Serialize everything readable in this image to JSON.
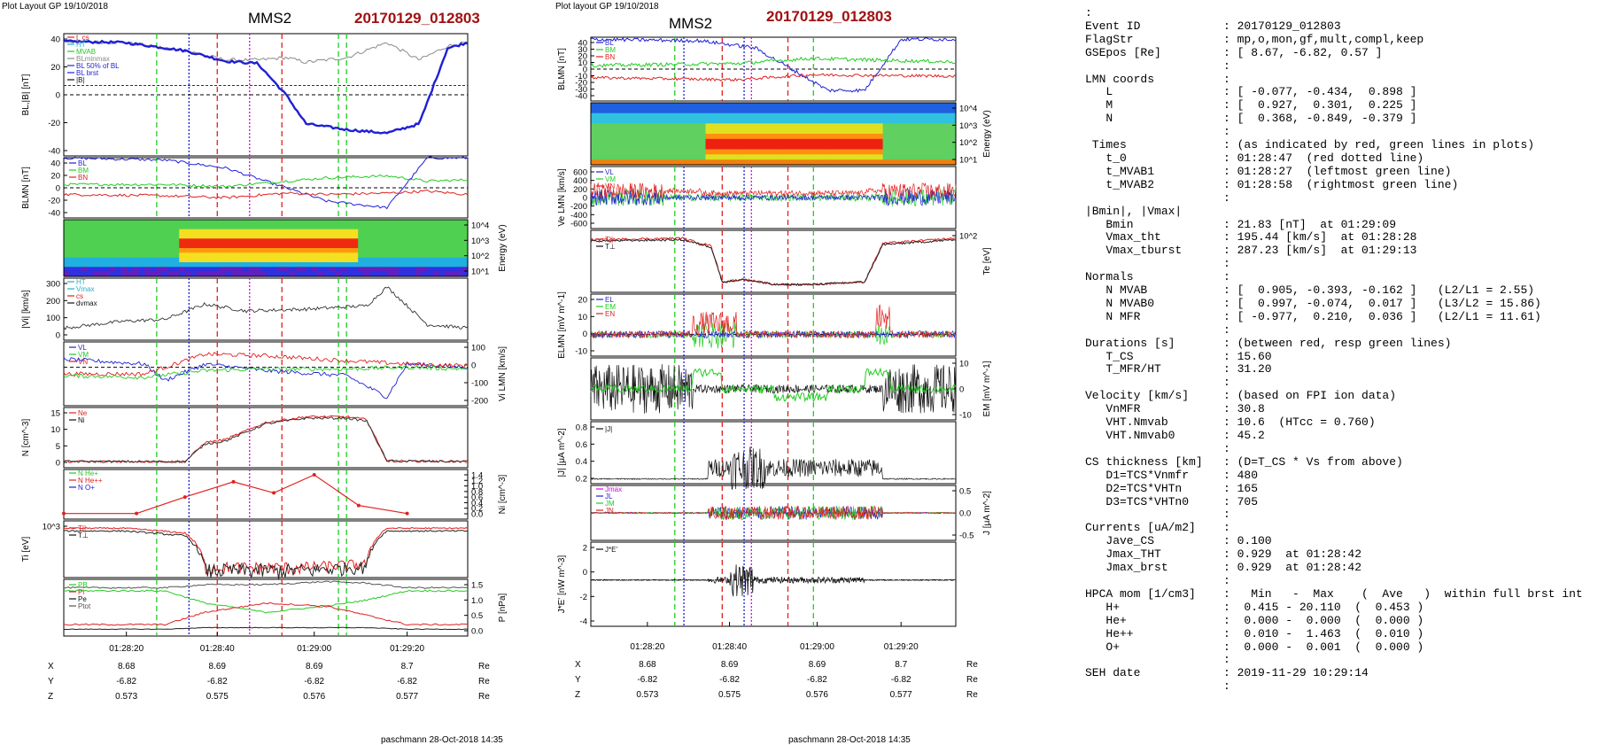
{
  "header_left": {
    "layout_label": "Plot Layout GP 19/10/2018",
    "spacecraft": "MMS2",
    "event": "20170129_012803",
    "footer": "paschmann 28-Oct-2018 14:35"
  },
  "header_mid": {
    "layout_label": "Plot layout GP 19/10/2018",
    "spacecraft": "MMS2",
    "event": "20170129_012803",
    "footer": "paschmann 28-Oct-2018 14:35"
  },
  "colors": {
    "blue": "#1f1fd6",
    "red": "#e02020",
    "green": "#22cc22",
    "magenta": "#e000e0",
    "black": "#111111",
    "gray": "#8a8a8a",
    "event_red": "#a01010",
    "cyan": "#20b0d0"
  },
  "time_axis": {
    "tick_labels": [
      "01:28:20",
      "01:28:40",
      "01:29:00",
      "01:29:20"
    ],
    "position_rows": [
      {
        "label": "X",
        "values": [
          "8.68",
          "8.69",
          "8.69",
          "8.7"
        ],
        "unit": "Re"
      },
      {
        "label": "Y",
        "values": [
          "-6.82",
          "-6.82",
          "-6.82",
          "-6.82"
        ],
        "unit": "Re"
      },
      {
        "label": "Z",
        "values": [
          "0.573",
          "0.575",
          "0.576",
          "0.577"
        ],
        "unit": "Re"
      }
    ]
  },
  "chart_data": [
    {
      "type": "line",
      "panel": "left-1",
      "ylabel": "BL,|B| [nT]",
      "yticks": [
        "40",
        "20",
        "0",
        "-20",
        "-40"
      ],
      "legend": [
        "t_cs",
        "HT",
        "MVAB",
        "BLminmax",
        "BL 50% of BL",
        "BL brst",
        "|B|"
      ],
      "series": [
        {
          "name": "BL brst",
          "x": [
            0,
            15,
            30,
            40,
            48,
            55,
            60,
            70,
            80,
            88,
            95,
            100
          ],
          "values": [
            46,
            45,
            38,
            29,
            27,
            0,
            -25,
            -30,
            -33,
            -25,
            40,
            45
          ]
        },
        {
          "name": "|B|",
          "x": [
            0,
            15,
            30,
            40,
            48,
            55,
            60,
            70,
            80,
            88,
            95,
            100
          ],
          "values": [
            46,
            45,
            38,
            30,
            30,
            32,
            28,
            32,
            45,
            30,
            42,
            45
          ]
        }
      ]
    },
    {
      "type": "line",
      "panel": "left-2",
      "ylabel": "BLMN [nT]",
      "yticks": [
        "40",
        "20",
        "0",
        "-20",
        "-40"
      ],
      "legend": [
        "BL",
        "BM",
        "BN"
      ],
      "series": [
        {
          "name": "BL",
          "x": [
            0,
            25,
            40,
            55,
            65,
            80,
            90,
            100
          ],
          "values": [
            45,
            42,
            30,
            0,
            -20,
            -30,
            45,
            45
          ]
        },
        {
          "name": "BM",
          "x": [
            0,
            25,
            40,
            55,
            65,
            80,
            90,
            100
          ],
          "values": [
            5,
            5,
            2,
            10,
            15,
            18,
            10,
            12
          ]
        },
        {
          "name": "BN",
          "x": [
            0,
            25,
            40,
            55,
            65,
            80,
            90,
            100
          ],
          "values": [
            -10,
            -12,
            -15,
            -8,
            -10,
            -8,
            -5,
            -10
          ]
        }
      ]
    },
    {
      "type": "heatmap",
      "panel": "left-3",
      "ylabel": "Energy (eV)",
      "yticks": [
        "10^4",
        "10^3",
        "10^2",
        "10^1"
      ]
    },
    {
      "type": "line",
      "panel": "left-4",
      "ylabel": "|Vi| [km/s]",
      "yticks": [
        "300",
        "200",
        "100",
        "0"
      ],
      "legend": [
        "HT",
        "Vmax",
        "cs",
        "dvmax"
      ],
      "series": [
        {
          "name": "|Vi|",
          "x": [
            0,
            15,
            25,
            35,
            45,
            60,
            75,
            80,
            90,
            100
          ],
          "values": [
            40,
            80,
            90,
            180,
            140,
            150,
            170,
            280,
            60,
            40
          ]
        }
      ]
    },
    {
      "type": "line",
      "panel": "left-5",
      "ylabel": "Vi LMN [km/s]",
      "yticks": [
        "100",
        "0",
        "-100",
        "-200"
      ],
      "legend": [
        "VL",
        "VM",
        "VN"
      ],
      "series": [
        {
          "name": "VL",
          "x": [
            0,
            20,
            25,
            35,
            50,
            70,
            80,
            85,
            100
          ],
          "values": [
            50,
            20,
            -80,
            20,
            -20,
            -50,
            -180,
            20,
            0
          ]
        },
        {
          "name": "VM",
          "x": [
            0,
            20,
            35,
            50,
            70,
            85,
            100
          ],
          "values": [
            -40,
            -40,
            80,
            70,
            40,
            20,
            10
          ]
        },
        {
          "name": "VN",
          "x": [
            0,
            20,
            35,
            50,
            70,
            85,
            100
          ],
          "values": [
            -50,
            -60,
            -20,
            -10,
            -10,
            0,
            -10
          ]
        }
      ]
    },
    {
      "type": "line",
      "panel": "left-6",
      "ylabel": "N [cm^-3]",
      "yticks": [
        "15",
        "10",
        "5",
        "0"
      ],
      "legend": [
        "Ne",
        "Ni"
      ],
      "series": [
        {
          "name": "Ne",
          "x": [
            0,
            30,
            35,
            40,
            50,
            60,
            70,
            75,
            80,
            100
          ],
          "values": [
            0.3,
            0.3,
            7,
            8,
            14,
            16,
            16,
            15,
            0.5,
            0.3
          ]
        },
        {
          "name": "Ni",
          "x": [
            0,
            30,
            35,
            40,
            50,
            60,
            70,
            75,
            80,
            100
          ],
          "values": [
            0.3,
            0.3,
            6.5,
            7.5,
            13.5,
            15.5,
            15.5,
            14.5,
            0.5,
            0.3
          ]
        }
      ]
    },
    {
      "type": "line",
      "panel": "left-7",
      "ylabel": "Ni [cm^-3]",
      "yticks": [
        "1.4",
        "1.2",
        "1.0",
        "0.8",
        "0.6",
        "0.4",
        "0.2",
        "0.0"
      ],
      "legend": [
        "N He+",
        "N He++",
        "N O+"
      ],
      "series": [
        {
          "name": "N He++",
          "x": [
            0,
            18,
            30,
            42,
            52,
            62,
            73,
            85
          ],
          "values": [
            0.01,
            0.01,
            0.6,
            1.15,
            0.75,
            1.4,
            0.3,
            0.01
          ]
        }
      ]
    },
    {
      "type": "line",
      "panel": "left-8",
      "ylabel": "Ti [eV]",
      "yticks": [
        "10^3"
      ],
      "legend": [
        "T||",
        "T⊥"
      ],
      "series": [
        {
          "name": "T||",
          "x": [
            0,
            15,
            30,
            35,
            60,
            75,
            80,
            100
          ],
          "values": [
            4000,
            4000,
            3000,
            400,
            400,
            500,
            4000,
            4000
          ]
        }
      ]
    },
    {
      "type": "line",
      "panel": "left-9",
      "ylabel": "P [nPa]",
      "yticks": [
        "1.5",
        "1.0",
        "0.5",
        "0.0"
      ],
      "legend": [
        "PB",
        "Pi",
        "Pe",
        "Ptot"
      ]
    },
    {
      "type": "line",
      "panel": "mid-1",
      "ylabel": "BLMN [nT]",
      "yticks": [
        "40",
        "30",
        "20",
        "10",
        "0",
        "-10",
        "-20",
        "-30",
        "-40"
      ],
      "legend": [
        "BL",
        "BM",
        "BN"
      ],
      "series": [
        {
          "name": "BL",
          "x": [
            0,
            30,
            45,
            55,
            65,
            75,
            85,
            100
          ],
          "values": [
            42,
            40,
            30,
            0,
            -30,
            -30,
            42,
            42
          ]
        }
      ]
    },
    {
      "type": "heatmap",
      "panel": "mid-2",
      "ylabel": "Energy (eV)",
      "yticks": [
        "10^4",
        "10^3",
        "10^2",
        "10^1"
      ]
    },
    {
      "type": "line",
      "panel": "mid-3",
      "ylabel": "Ve LMN [km/s]",
      "yticks": [
        "600",
        "400",
        "200",
        "0",
        "-200",
        "-400",
        "-600"
      ],
      "legend": [
        "VL",
        "VM",
        "VN"
      ]
    },
    {
      "type": "line",
      "panel": "mid-4",
      "ylabel": "Te [eV]",
      "yticks": [
        "10^2"
      ],
      "legend": [
        "T||",
        "T⊥"
      ]
    },
    {
      "type": "line",
      "panel": "mid-5",
      "ylabel": "ELMN [mV m^-1]",
      "yticks": [
        "20",
        "10",
        "0",
        "-10"
      ],
      "legend": [
        "EL",
        "EM",
        "EN"
      ]
    },
    {
      "type": "line",
      "panel": "mid-6",
      "ylabel": "EM [mV m^-1]",
      "yticks": [
        "10",
        "0",
        "-10"
      ]
    },
    {
      "type": "line",
      "panel": "mid-7",
      "ylabel": "|J| [μA m^-2]",
      "yticks": [
        "0.8",
        "0.6",
        "0.4",
        "0.2"
      ],
      "legend": [
        "|J|"
      ]
    },
    {
      "type": "line",
      "panel": "mid-8",
      "ylabel": "J [μA m^-2]",
      "yticks": [
        "0.5",
        "0.0",
        "-0.5"
      ],
      "legend": [
        "Jmax",
        "JL",
        "JM",
        "JN"
      ]
    },
    {
      "type": "line",
      "panel": "mid-9",
      "ylabel": "J*E' [nW m^-3]",
      "yticks": [
        "2",
        "0",
        "-2",
        "-4"
      ],
      "legend": [
        "J*E'"
      ]
    }
  ],
  "info_panel": {
    "rows": [
      {
        "k": "",
        "v": ":"
      },
      {
        "k": "Event ID",
        "v": ": 20170129_012803"
      },
      {
        "k": "FlagStr",
        "v": ": mp,o,mon,gf,mult,compl,keep"
      },
      {
        "k": "GSEpos [Re]",
        "v": ": [ 8.67, -6.82, 0.57 ]"
      },
      {
        "k": "",
        "v": ":"
      },
      {
        "k": "LMN coords",
        "v": ":"
      },
      {
        "k": "   L",
        "v": ": [ -0.077, -0.434,  0.898 ]"
      },
      {
        "k": "   M",
        "v": ": [  0.927,  0.301,  0.225 ]"
      },
      {
        "k": "   N",
        "v": ": [  0.368, -0.849, -0.379 ]"
      },
      {
        "k": "",
        "v": ":"
      },
      {
        "k": " Times",
        "v": ": (as indicated by red, green lines in plots)"
      },
      {
        "k": "   t_0",
        "v": ": 01:28:47  (red dotted line)"
      },
      {
        "k": "   t_MVAB1",
        "v": ": 01:28:27  (leftmost green line)"
      },
      {
        "k": "   t_MVAB2",
        "v": ": 01:28:58  (rightmost green line)"
      },
      {
        "k": "",
        "v": ":"
      },
      {
        "k": "|Bmin|, |Vmax|",
        "v": ""
      },
      {
        "k": "   Bmin",
        "v": ": 21.83 [nT]  at 01:29:09"
      },
      {
        "k": "   Vmax_tht",
        "v": ": 195.44 [km/s]  at 01:28:28"
      },
      {
        "k": "   Vmax_tburst",
        "v": ": 287.23 [km/s]  at 01:29:13"
      },
      {
        "k": "",
        "v": ":"
      },
      {
        "k": "Normals",
        "v": ":"
      },
      {
        "k": "   N MVAB",
        "v": ": [  0.905, -0.393, -0.162 ]   (L2/L1 = 2.55)"
      },
      {
        "k": "   N MVAB0",
        "v": ": [  0.997, -0.074,  0.017 ]   (L3/L2 = 15.86)"
      },
      {
        "k": "   N MFR",
        "v": ": [ -0.977,  0.210,  0.036 ]   (L2/L1 = 11.61)"
      },
      {
        "k": "",
        "v": ":"
      },
      {
        "k": "Durations [s]",
        "v": ": (between red, resp green lines)"
      },
      {
        "k": "   T_CS",
        "v": ": 15.60"
      },
      {
        "k": "   T_MFR/HT",
        "v": ": 31.20"
      },
      {
        "k": "",
        "v": ":"
      },
      {
        "k": "Velocity [km/s]",
        "v": ": (based on FPI ion data)"
      },
      {
        "k": "   VnMFR",
        "v": ": 30.8"
      },
      {
        "k": "   VHT.Nmvab",
        "v": ": 10.6  (HTcc = 0.760)"
      },
      {
        "k": "   VHT.Nmvab0",
        "v": ": 45.2"
      },
      {
        "k": "",
        "v": ":"
      },
      {
        "k": "CS thickness [km]",
        "v": ": (D=T_CS * Vs from above)"
      },
      {
        "k": "   D1=TCS*Vnmfr",
        "v": ": 480"
      },
      {
        "k": "   D2=TCS*VHTn",
        "v": ": 165"
      },
      {
        "k": "   D3=TCS*VHTn0",
        "v": ": 705"
      },
      {
        "k": "",
        "v": ":"
      },
      {
        "k": "Currents [uA/m2]",
        "v": ":"
      },
      {
        "k": "   Jave_CS",
        "v": ": 0.100"
      },
      {
        "k": "   Jmax_THT",
        "v": ": 0.929  at 01:28:42"
      },
      {
        "k": "   Jmax_brst",
        "v": ": 0.929  at 01:28:42"
      },
      {
        "k": "",
        "v": ":"
      },
      {
        "k": "HPCA mom [1/cm3]",
        "v": ":   Min   -  Max    (  Ave   )  within full brst int"
      },
      {
        "k": "   H+",
        "v": ":  0.415 - 20.110  (  0.453 )"
      },
      {
        "k": "   He+",
        "v": ":  0.000 -  0.000  (  0.000 )"
      },
      {
        "k": "   He++",
        "v": ":  0.010 -  1.463  (  0.010 )"
      },
      {
        "k": "   O+",
        "v": ":  0.000 -  0.001  (  0.000 )"
      },
      {
        "k": "",
        "v": ":"
      },
      {
        "k": "SEH date",
        "v": ": 2019-11-29 10:29:14"
      },
      {
        "k": "",
        "v": ":"
      }
    ]
  }
}
